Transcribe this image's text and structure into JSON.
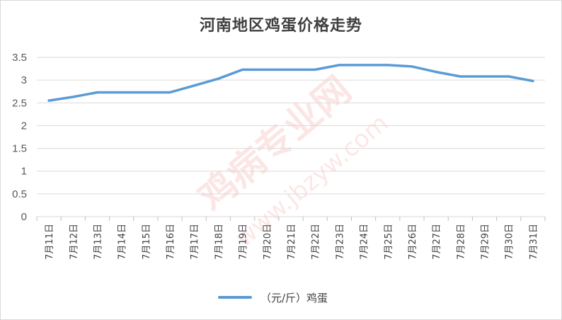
{
  "chart_data": {
    "type": "line",
    "title": "河南地区鸡蛋价格走势",
    "categories": [
      "7月11日",
      "7月12日",
      "7月13日",
      "7月14日",
      "7月15日",
      "7月16日",
      "7月17日",
      "7月18日",
      "7月19日",
      "7月20日",
      "7月21日",
      "7月22日",
      "7月23日",
      "7月24日",
      "7月25日",
      "7月26日",
      "7月27日",
      "7月28日",
      "7月29日",
      "7月30日",
      "7月31日"
    ],
    "series": [
      {
        "name": "（元/斤）鸡蛋",
        "color": "#5b9bd5",
        "values": [
          2.55,
          2.63,
          2.73,
          2.73,
          2.73,
          2.73,
          2.88,
          3.03,
          3.23,
          3.23,
          3.23,
          3.23,
          3.33,
          3.33,
          3.33,
          3.3,
          3.18,
          3.08,
          3.08,
          3.08,
          2.98
        ]
      }
    ],
    "ylim": [
      0,
      3.5
    ],
    "yticks": [
      0,
      0.5,
      1,
      1.5,
      2,
      2.5,
      3,
      3.5
    ],
    "ytick_labels": [
      "0",
      "0.5",
      "1",
      "1.5",
      "2",
      "2.5",
      "3",
      "3.5"
    ],
    "grid": true,
    "legend_position": "bottom"
  },
  "watermark": {
    "brand": "鸡病专业网",
    "url": "www.jbzyw.com",
    "color": "#e8453c"
  }
}
